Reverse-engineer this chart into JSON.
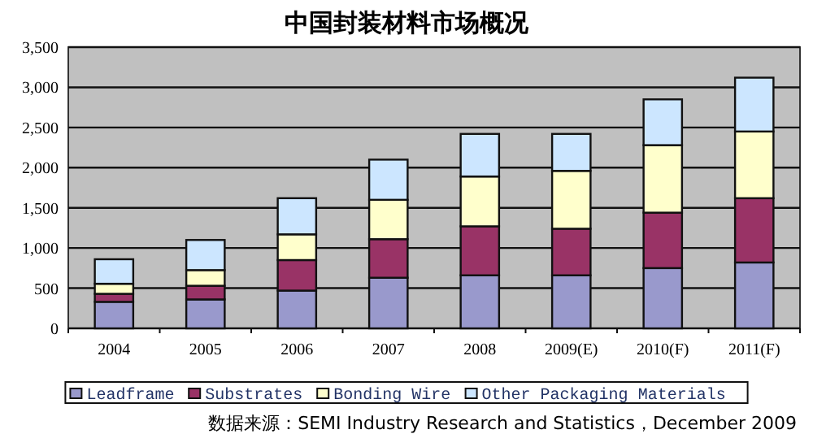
{
  "chart_data": {
    "type": "bar",
    "title": "中国封装材料市场概况",
    "categories": [
      "2004",
      "2005",
      "2006",
      "2007",
      "2008",
      "2009(E)",
      "2010(F)",
      "2011(F)"
    ],
    "stacked": true,
    "series": [
      {
        "name": "Leadframe",
        "color": "#9999cc",
        "values": [
          330,
          360,
          470,
          630,
          660,
          660,
          750,
          820
        ]
      },
      {
        "name": "Substrates",
        "color": "#993366",
        "values": [
          100,
          170,
          380,
          480,
          610,
          580,
          690,
          800
        ]
      },
      {
        "name": "Bonding Wire",
        "color": "#ffffcc",
        "values": [
          125,
          195,
          320,
          490,
          620,
          720,
          840,
          830
        ]
      },
      {
        "name": "Other Packaging Materials",
        "color": "#cce6ff",
        "values": [
          305,
          375,
          450,
          500,
          530,
          460,
          570,
          670
        ]
      }
    ],
    "ylim": [
      0,
      3500
    ],
    "yticks": [
      {
        "value": 0,
        "label": "0"
      },
      {
        "value": 500,
        "label": "500"
      },
      {
        "value": 1000,
        "label": "1,000"
      },
      {
        "value": 1500,
        "label": "1,500"
      },
      {
        "value": 2000,
        "label": "2,000"
      },
      {
        "value": 2500,
        "label": "2,500"
      },
      {
        "value": 3000,
        "label": "3,000"
      },
      {
        "value": 3500,
        "label": "3,500"
      }
    ],
    "grid": "y",
    "legend": "bottom",
    "annotations": [
      "数据来源：SEMI Industry Research and Statistics，December 2009"
    ]
  }
}
